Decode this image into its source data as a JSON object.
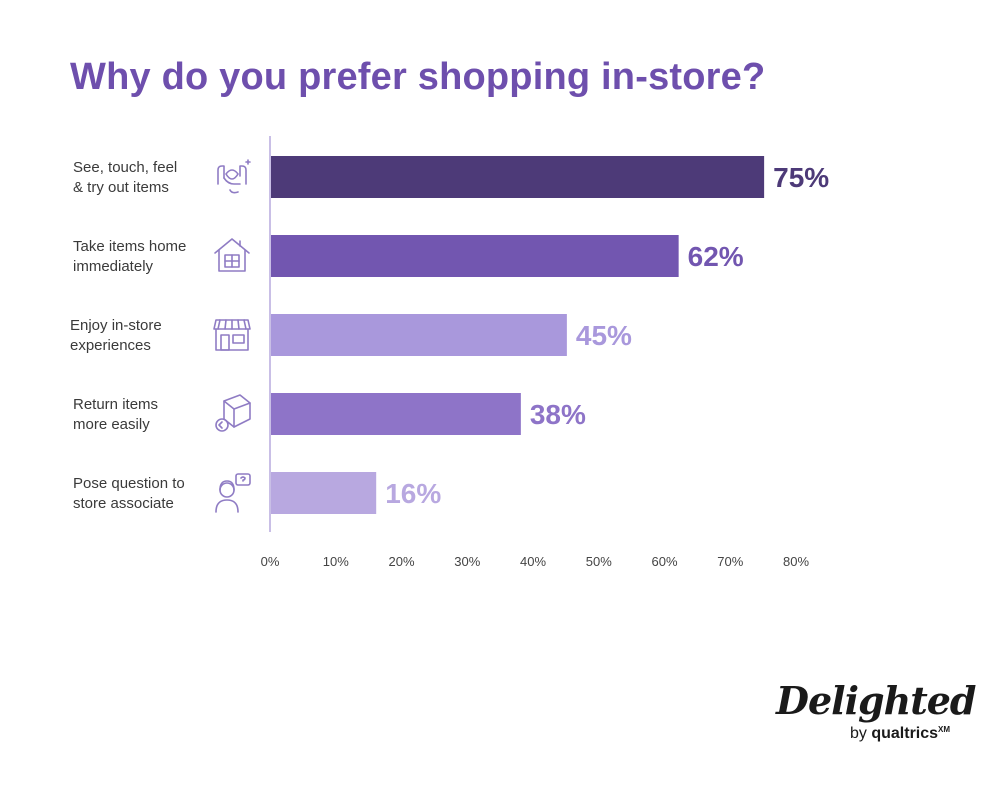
{
  "chart_data": {
    "type": "bar",
    "orientation": "horizontal",
    "title": "Why do you prefer shopping in-store?",
    "categories": [
      "See, touch, feel\n& try out items",
      "Take items home\nimmediately",
      "Enjoy in-store\nexperiences",
      "Return items\nmore easily",
      "Pose question to\nstore associate"
    ],
    "values": [
      75,
      62,
      45,
      38,
      16
    ],
    "value_labels": [
      "75%",
      "62%",
      "45%",
      "38%",
      "16%"
    ],
    "bar_colors": [
      "#4d3a78",
      "#7256b0",
      "#a998dc",
      "#8e74c8",
      "#b8a8e0"
    ],
    "xlim": [
      0,
      80
    ],
    "xticks": [
      "0%",
      "10%",
      "20%",
      "30%",
      "40%",
      "50%",
      "60%",
      "70%",
      "80%"
    ],
    "grid": false,
    "icons": [
      "hands-heart-icon",
      "house-icon",
      "storefront-icon",
      "return-box-icon",
      "associate-question-icon"
    ]
  },
  "brand": {
    "name": "Delighted",
    "byline_prefix": "by ",
    "byline_company": "qualtrics",
    "byline_mark": "XM"
  },
  "colors": {
    "title": "#6e4fad",
    "axis": "#c9bfe6",
    "icon_stroke": "#8f7cc4"
  }
}
